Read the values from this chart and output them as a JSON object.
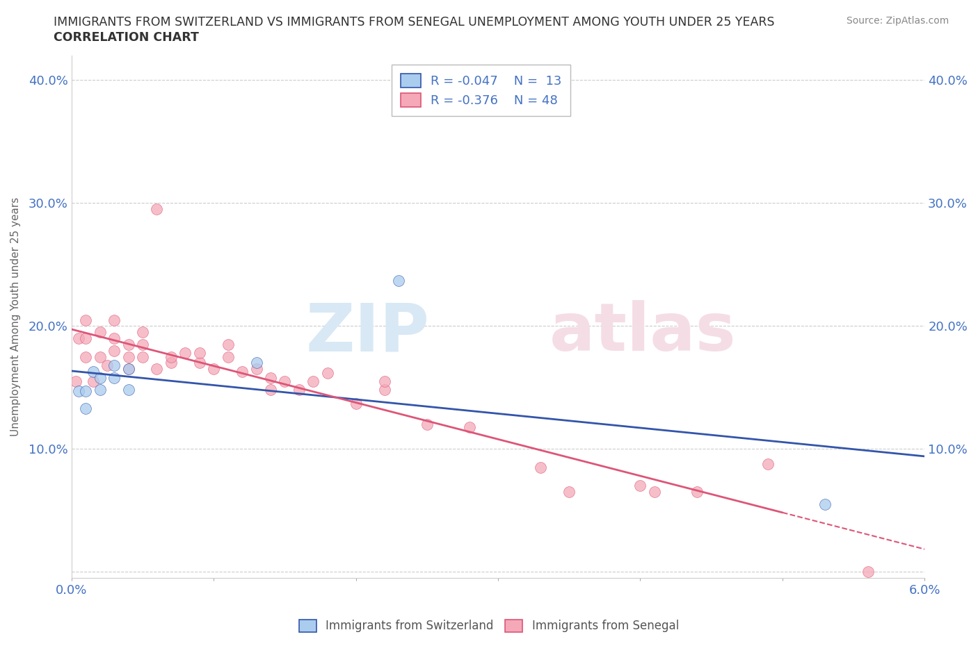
{
  "title_line1": "IMMIGRANTS FROM SWITZERLAND VS IMMIGRANTS FROM SENEGAL UNEMPLOYMENT AMONG YOUTH UNDER 25 YEARS",
  "title_line2": "CORRELATION CHART",
  "source": "Source: ZipAtlas.com",
  "ylabel": "Unemployment Among Youth under 25 years",
  "xlim": [
    0.0,
    0.06
  ],
  "ylim": [
    -0.005,
    0.42
  ],
  "color_swiss": "#aaccee",
  "color_senegal": "#f4a8b8",
  "color_swiss_line": "#3355aa",
  "color_senegal_line": "#dd5577",
  "color_axis_text": "#4472c4",
  "color_title": "#333333",
  "color_source": "#888888",
  "color_ylabel": "#666666",
  "background": "#ffffff",
  "swiss_x": [
    0.0005,
    0.001,
    0.001,
    0.0015,
    0.002,
    0.002,
    0.003,
    0.003,
    0.004,
    0.004,
    0.013,
    0.023,
    0.053
  ],
  "swiss_y": [
    0.147,
    0.147,
    0.133,
    0.163,
    0.158,
    0.148,
    0.158,
    0.168,
    0.165,
    0.148,
    0.17,
    0.237,
    0.055
  ],
  "senegal_x": [
    0.0003,
    0.0005,
    0.001,
    0.001,
    0.001,
    0.0015,
    0.002,
    0.002,
    0.0025,
    0.003,
    0.003,
    0.003,
    0.004,
    0.004,
    0.004,
    0.005,
    0.005,
    0.005,
    0.006,
    0.006,
    0.007,
    0.007,
    0.008,
    0.009,
    0.009,
    0.01,
    0.011,
    0.011,
    0.012,
    0.013,
    0.014,
    0.014,
    0.015,
    0.016,
    0.017,
    0.018,
    0.02,
    0.022,
    0.022,
    0.025,
    0.028,
    0.033,
    0.035,
    0.04,
    0.041,
    0.044,
    0.049,
    0.056
  ],
  "senegal_y": [
    0.155,
    0.19,
    0.175,
    0.19,
    0.205,
    0.155,
    0.175,
    0.195,
    0.168,
    0.18,
    0.19,
    0.205,
    0.165,
    0.175,
    0.185,
    0.175,
    0.185,
    0.195,
    0.165,
    0.295,
    0.17,
    0.175,
    0.178,
    0.17,
    0.178,
    0.165,
    0.175,
    0.185,
    0.163,
    0.165,
    0.148,
    0.158,
    0.155,
    0.148,
    0.155,
    0.162,
    0.137,
    0.148,
    0.155,
    0.12,
    0.118,
    0.085,
    0.065,
    0.07,
    0.065,
    0.065,
    0.088,
    0.0
  ],
  "grid_color": "#cccccc",
  "grid_style": "--"
}
